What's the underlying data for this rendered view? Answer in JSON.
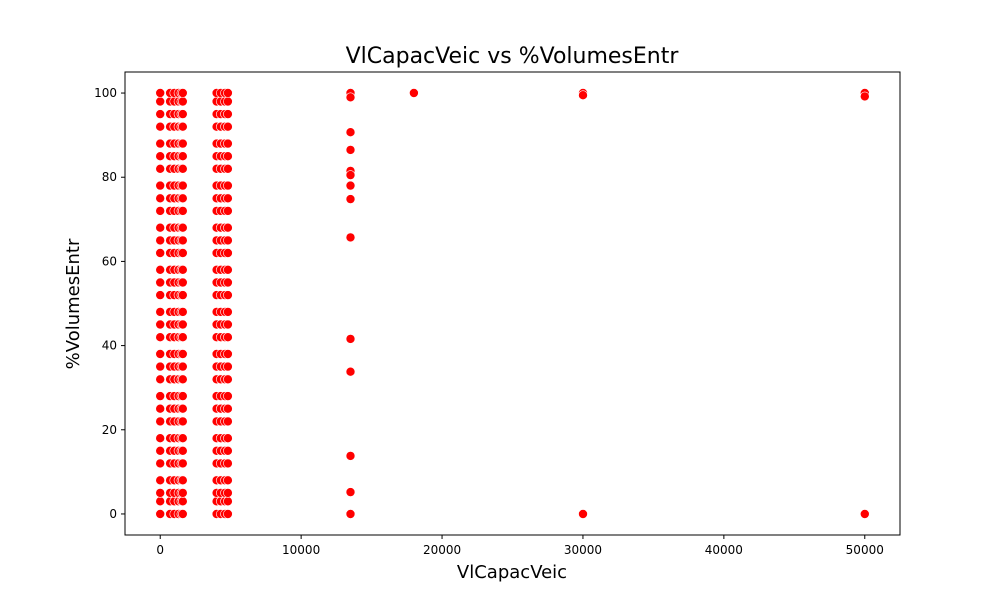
{
  "chart_data": {
    "type": "scatter",
    "title": "VlCapacVeic vs %VolumesEntr",
    "xlabel": "VlCapacVeic",
    "ylabel": "%VolumesEntr",
    "xlim": [
      -2500,
      52500
    ],
    "ylim": [
      -5,
      105
    ],
    "xticks": [
      0,
      10000,
      20000,
      30000,
      40000,
      50000
    ],
    "yticks": [
      0,
      20,
      40,
      60,
      80,
      100
    ],
    "grid": false,
    "legend": "none",
    "marker_color": "#ff0000",
    "marker_edge_color": "#ffffff",
    "series": [
      {
        "cluster_x": [
          0,
          700,
          1000,
          1300,
          1500,
          1600,
          4000,
          4300,
          4600,
          4800
        ],
        "cluster_y": [
          0,
          3,
          5,
          8,
          12,
          15,
          18,
          22,
          25,
          28,
          32,
          35,
          38,
          42,
          45,
          48,
          52,
          55,
          58,
          62,
          65,
          68,
          72,
          75,
          78,
          82,
          85,
          88,
          92,
          95,
          98,
          100
        ],
        "points": [
          {
            "x": 13500,
            "y": 100
          },
          {
            "x": 13500,
            "y": 99
          },
          {
            "x": 13500,
            "y": 90.7
          },
          {
            "x": 13500,
            "y": 86.5
          },
          {
            "x": 13500,
            "y": 81.5
          },
          {
            "x": 13500,
            "y": 80.5
          },
          {
            "x": 13500,
            "y": 78
          },
          {
            "x": 13500,
            "y": 74.8
          },
          {
            "x": 13500,
            "y": 65.7
          },
          {
            "x": 13500,
            "y": 41.6
          },
          {
            "x": 13500,
            "y": 33.8
          },
          {
            "x": 13500,
            "y": 13.8
          },
          {
            "x": 13500,
            "y": 5.2
          },
          {
            "x": 13500,
            "y": 0
          },
          {
            "x": 18000,
            "y": 100
          },
          {
            "x": 30000,
            "y": 100
          },
          {
            "x": 30000,
            "y": 99.5
          },
          {
            "x": 30000,
            "y": 0
          },
          {
            "x": 50000,
            "y": 100
          },
          {
            "x": 50000,
            "y": 99.2
          },
          {
            "x": 50000,
            "y": 0
          }
        ]
      }
    ]
  }
}
